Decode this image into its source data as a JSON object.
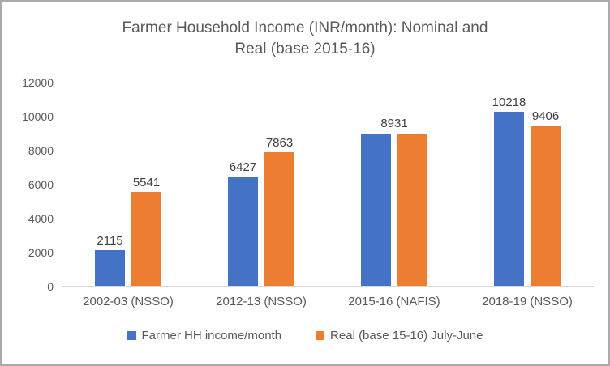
{
  "chart_data": {
    "type": "bar",
    "title": "Farmer Household Income (INR/month): Nominal and Real (base 2015-16)",
    "title_lines": [
      "Farmer Household Income (INR/month): Nominal and",
      "Real (base 2015-16)"
    ],
    "categories": [
      "2002-03 (NSSO)",
      "2012-13 (NSSO)",
      "2015-16 (NAFIS)",
      "2018-19 (NSSO)"
    ],
    "series": [
      {
        "key": "nominal",
        "name": "Farmer HH income/month",
        "color": "#4472C4",
        "values": [
          2115,
          6427,
          8931,
          10218
        ]
      },
      {
        "key": "real",
        "name": "Real (base 15-16) July-June",
        "color": "#ED7D31",
        "values": [
          5541,
          7863,
          8931,
          9406
        ]
      }
    ],
    "data_labels": [
      {
        "group": 0,
        "anchor": "bar0",
        "text": "2115"
      },
      {
        "group": 0,
        "anchor": "bar1",
        "text": "5541"
      },
      {
        "group": 1,
        "anchor": "bar0",
        "text": "6427"
      },
      {
        "group": 1,
        "anchor": "bar1",
        "text": "7863"
      },
      {
        "group": 2,
        "anchor": "group",
        "text": "8931"
      },
      {
        "group": 3,
        "anchor": "bar0",
        "text": "10218"
      },
      {
        "group": 3,
        "anchor": "bar1",
        "text": "9406"
      }
    ],
    "y_axis": {
      "min": 0,
      "max": 12000,
      "step": 2000,
      "tick_labels": [
        "0",
        "2000",
        "4000",
        "6000",
        "8000",
        "10000",
        "12000"
      ]
    },
    "grid": false,
    "legend_position": "bottom",
    "colors": {
      "title_text": "#595959",
      "axis_text": "#595959",
      "data_label_text": "#404040",
      "baseline": "#d9d9d9",
      "frame_border": "#ababab",
      "background": "#ffffff"
    }
  }
}
